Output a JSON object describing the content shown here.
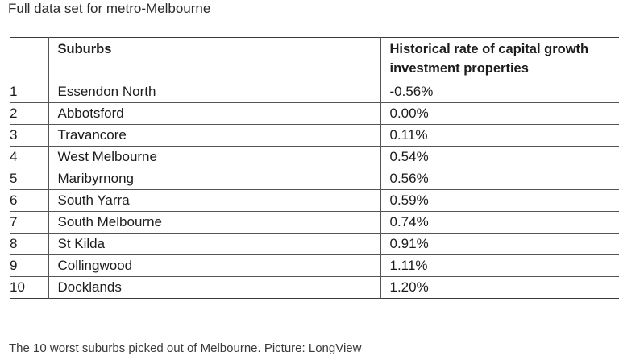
{
  "title": "Full data set for metro-Melbourne",
  "table": {
    "columns": [
      "",
      "Suburbs",
      "Historical rate of capital growth investment properties"
    ],
    "header_rate_line1": "Historical rate of capital growth",
    "header_rate_line2": "investment properties",
    "rows": [
      {
        "rank": "1",
        "suburb": "Essendon North",
        "rate": "-0.56%"
      },
      {
        "rank": "2",
        "suburb": "Abbotsford",
        "rate": "0.00%"
      },
      {
        "rank": "3",
        "suburb": "Travancore",
        "rate": "0.11%"
      },
      {
        "rank": "4",
        "suburb": "West Melbourne",
        "rate": "0.54%"
      },
      {
        "rank": "5",
        "suburb": "Maribyrnong",
        "rate": "0.56%"
      },
      {
        "rank": "6",
        "suburb": "South Yarra",
        "rate": "0.59%"
      },
      {
        "rank": "7",
        "suburb": "South Melbourne",
        "rate": "0.74%"
      },
      {
        "rank": "8",
        "suburb": "St Kilda",
        "rate": "0.91%"
      },
      {
        "rank": "9",
        "suburb": "Collingwood",
        "rate": "1.11%"
      },
      {
        "rank": "10",
        "suburb": "Docklands",
        "rate": "1.20%"
      }
    ]
  },
  "caption": "The 10 worst suburbs picked out of Melbourne. Picture: LongView"
}
